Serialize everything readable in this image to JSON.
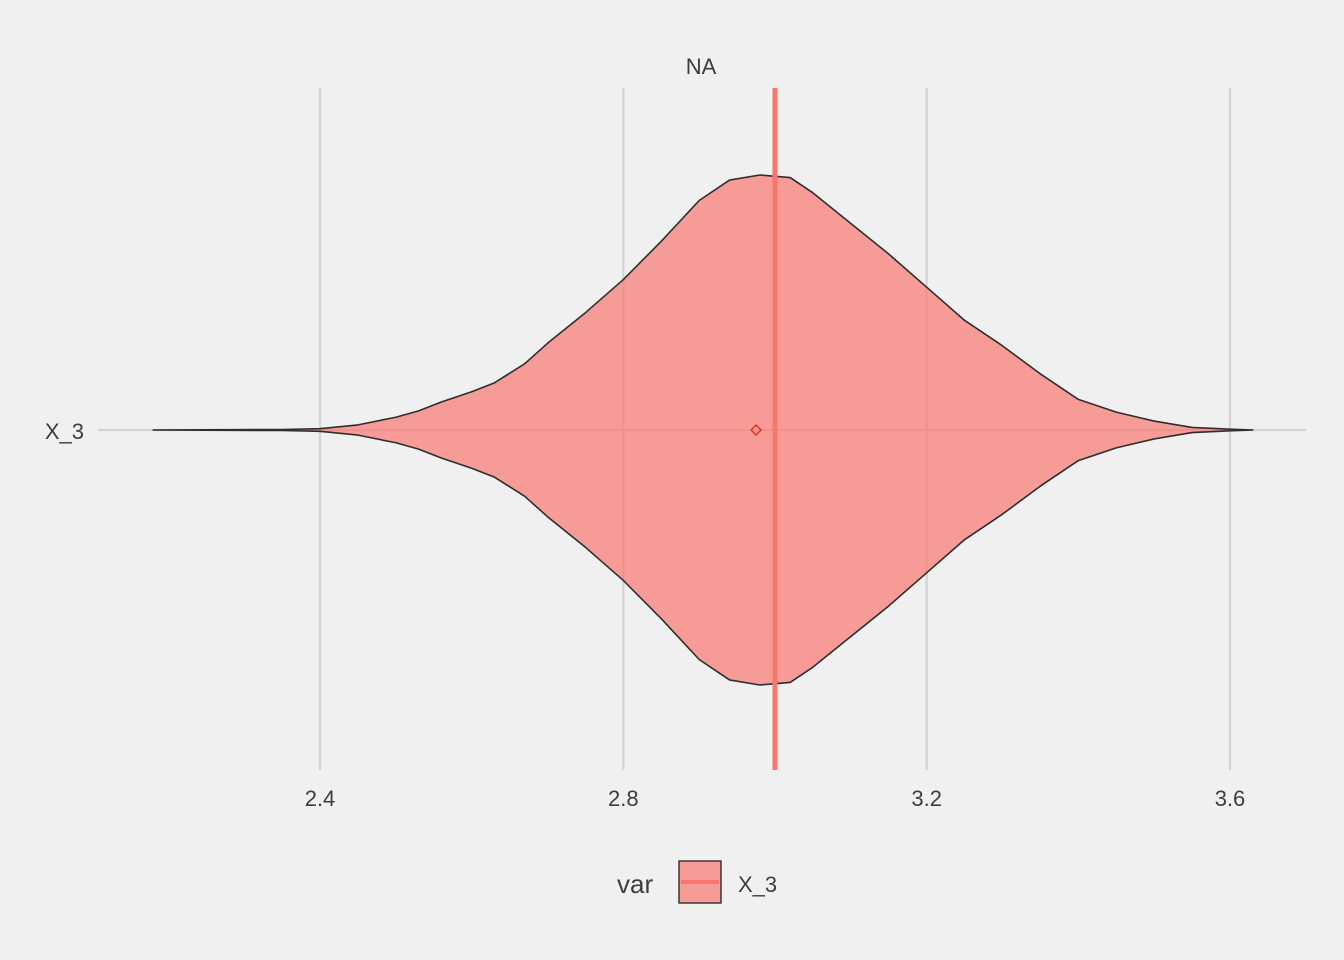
{
  "chart_data": {
    "type": "violin",
    "facet_title": "NA",
    "xlabel": "",
    "ylabel": "",
    "xlim": [
      2.18,
      3.7
    ],
    "x_ticks": [
      2.4,
      2.8,
      3.2,
      3.6
    ],
    "x_tick_labels": [
      "2.4",
      "2.8",
      "3.2",
      "3.6"
    ],
    "categories": [
      "X_3"
    ],
    "grid": true,
    "legend": {
      "title": "var",
      "position": "bottom",
      "entries": [
        "X_3"
      ]
    },
    "colors": {
      "fill": "#f8766d",
      "outline": "#2e2e2e",
      "background": "#f0f0f0",
      "grid": "#d3d3d3"
    },
    "series": [
      {
        "name": "X_3",
        "mean": 2.975,
        "reference_line": 3.0,
        "density": [
          [
            2.18,
            0.0
          ],
          [
            2.35,
            0.002
          ],
          [
            2.4,
            0.005
          ],
          [
            2.45,
            0.02
          ],
          [
            2.5,
            0.05
          ],
          [
            2.53,
            0.075
          ],
          [
            2.56,
            0.11
          ],
          [
            2.6,
            0.15
          ],
          [
            2.63,
            0.185
          ],
          [
            2.67,
            0.26
          ],
          [
            2.7,
            0.34
          ],
          [
            2.75,
            0.46
          ],
          [
            2.8,
            0.59
          ],
          [
            2.85,
            0.74
          ],
          [
            2.9,
            0.9
          ],
          [
            2.94,
            0.98
          ],
          [
            2.98,
            1.0
          ],
          [
            3.02,
            0.99
          ],
          [
            3.05,
            0.93
          ],
          [
            3.1,
            0.81
          ],
          [
            3.15,
            0.69
          ],
          [
            3.2,
            0.56
          ],
          [
            3.25,
            0.43
          ],
          [
            3.3,
            0.33
          ],
          [
            3.35,
            0.22
          ],
          [
            3.4,
            0.12
          ],
          [
            3.45,
            0.07
          ],
          [
            3.5,
            0.035
          ],
          [
            3.55,
            0.01
          ],
          [
            3.6,
            0.003
          ],
          [
            3.63,
            0.0
          ]
        ]
      }
    ]
  }
}
